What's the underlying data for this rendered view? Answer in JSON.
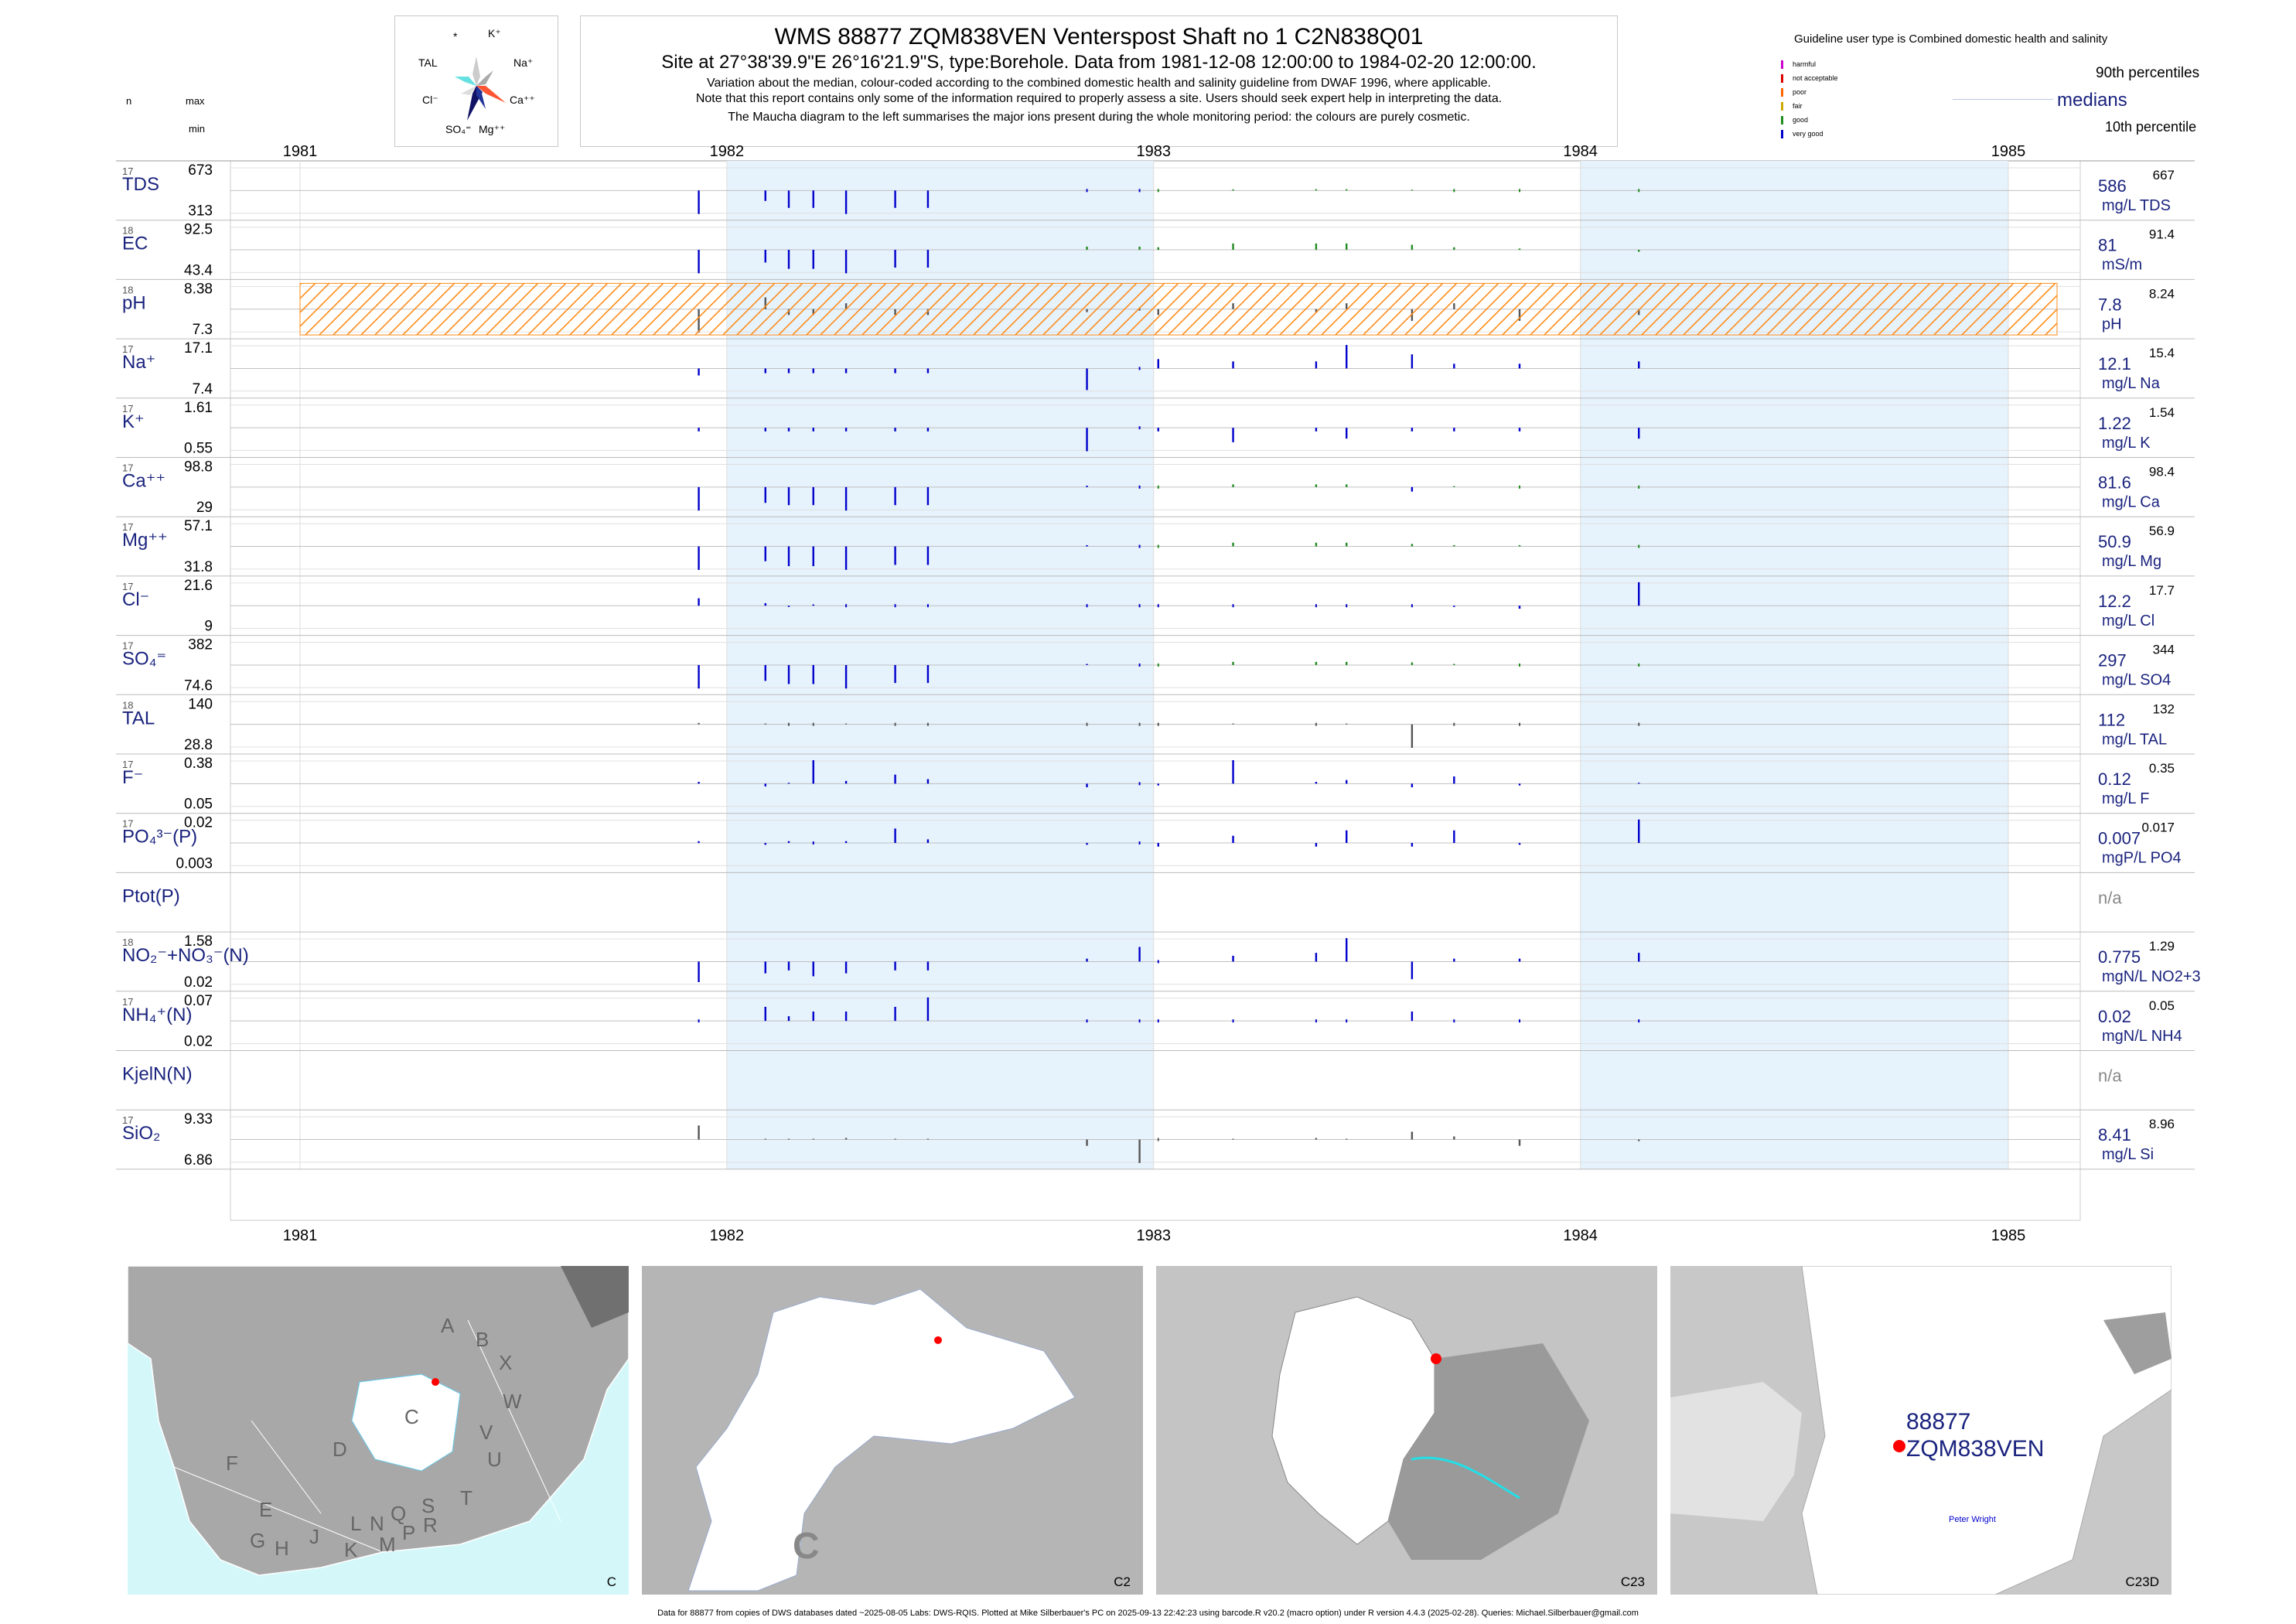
{
  "title": {
    "main": "WMS 88877 ZQM838VEN Venterspost Shaft no 1 C2N838Q01",
    "site": "Site at 27°38'39.9\"E 26°16'21.9\"S, type:Borehole.  Data from 1981-12-08 12:00:00 to 1984-02-20 12:00:00.",
    "line1": "Variation about the median,  colour-coded according to the combined domestic health and salinity guideline from DWAF 1996, where applicable.",
    "line2": "Note that this report contains only some of the information required to properly assess a site. Users should seek expert help in interpreting the data.",
    "line3": "The Maucha diagram to the left summarises the major ions present during the whole monitoring period: the colours are purely cosmetic."
  },
  "maucha": {
    "labels": [
      "*",
      "K⁺",
      "TAL",
      "Na⁺",
      "Cl⁻",
      "Ca⁺⁺",
      "SO₄⁼",
      "Mg⁺⁺"
    ],
    "colors": [
      "#66e0e0",
      "#cccccc",
      "#999999",
      "#ff5533",
      "#223399",
      "#111166",
      "#aaaaaa",
      "#dddddd"
    ]
  },
  "legend": {
    "title": "Guideline user type is Combined domestic health and salinity",
    "items": [
      {
        "label": "harmful",
        "color": "#cc00cc"
      },
      {
        "label": "not acceptable",
        "color": "#dd0000"
      },
      {
        "label": "poor",
        "color": "#ff6600"
      },
      {
        "label": "fair",
        "color": "#ccaa00"
      },
      {
        "label": "good",
        "color": "#228b22"
      },
      {
        "label": "very good",
        "color": "#0000cc"
      }
    ],
    "p90": "90th percentiles",
    "medians": "medians",
    "p10": "10th percentile"
  },
  "header": {
    "n": "n",
    "max": "max",
    "min": "min"
  },
  "chart_data": {
    "type": "bar",
    "x_start": "1981-01-01",
    "x_end": "1985-01-01",
    "years": [
      "1981",
      "1982",
      "1983",
      "1984",
      "1985"
    ],
    "sample_dates": [
      "1981-12-08",
      "1982-02-03",
      "1982-02-23",
      "1982-03-16",
      "1982-04-13",
      "1982-05-25",
      "1982-06-22",
      "1982-11-05",
      "1982-12-20",
      "1983-01-05",
      "1983-03-10",
      "1983-05-20",
      "1983-06-15",
      "1983-08-10",
      "1983-09-15",
      "1983-11-10",
      "1984-02-20"
    ],
    "colors": {
      "very_good": "#0000cc",
      "good": "#228b22",
      "fair": "#ccaa00",
      "poor": "#ff6600",
      "na": "#555555",
      "axis": "#aaaaaa",
      "shade": "#e6f2fc"
    },
    "series": [
      {
        "id": "TDS",
        "n": "17",
        "max": "673",
        "min": "313",
        "median": "586",
        "units": "mg/L TDS",
        "p90": "667",
        "values": [
          -270,
          -120,
          -200,
          -200,
          -270,
          -200,
          -200,
          3,
          0,
          0,
          13,
          15,
          15,
          10,
          5,
          3,
          0
        ],
        "colors": [
          "b",
          "b",
          "b",
          "b",
          "b",
          "b",
          "b",
          "b",
          "b",
          "g",
          "g",
          "g",
          "g",
          "g",
          "g",
          "g",
          "g"
        ]
      },
      {
        "id": "EC",
        "n": "18",
        "max": "92.5",
        "min": "43.4",
        "median": "81",
        "units": "mS/m",
        "p90": "91.4",
        "values": [
          -37,
          -20,
          -30,
          -30,
          -37,
          -28,
          -28,
          5,
          5,
          4,
          10,
          10,
          10,
          8,
          4,
          2,
          -3
        ],
        "colors": [
          "b",
          "b",
          "b",
          "b",
          "b",
          "b",
          "b",
          "g",
          "g",
          "g",
          "g",
          "g",
          "g",
          "g",
          "g",
          "g",
          "g"
        ]
      },
      {
        "id": "pH",
        "n": "18",
        "max": "8.38",
        "min": "7.3",
        "median": "7.8",
        "units": "pH",
        "p90": "8.24",
        "values": [
          -0.4,
          0.2,
          -0.1,
          -0.1,
          0.1,
          -0.1,
          -0.1,
          -0.05,
          0.0,
          -0.1,
          0.1,
          -0.05,
          0.1,
          -0.2,
          0.1,
          -0.2,
          -0.1
        ],
        "colors": [
          "n",
          "n",
          "n",
          "n",
          "n",
          "n",
          "n",
          "n",
          "n",
          "n",
          "n",
          "n",
          "n",
          "n",
          "n",
          "n",
          "n"
        ]
      },
      {
        "id": "Na",
        "n": "17",
        "max": "17.1",
        "min": "7.4",
        "median": "12.1",
        "units": "mg/L Na",
        "p90": "15.4",
        "values": [
          -1.5,
          -1.0,
          -1.0,
          -1.0,
          -1.0,
          -1.0,
          -1.0,
          -4.6,
          0,
          2.0,
          1.5,
          1.5,
          5.0,
          3.0,
          1.0,
          1.0,
          1.5
        ],
        "colors": [
          "b",
          "b",
          "b",
          "b",
          "b",
          "b",
          "b",
          "b",
          "b",
          "b",
          "b",
          "b",
          "b",
          "b",
          "b",
          "b",
          "b"
        ]
      },
      {
        "id": "K",
        "n": "17",
        "max": "1.61",
        "min": "0.55",
        "median": "1.22",
        "units": "mg/L K",
        "p90": "1.54",
        "values": [
          -0.1,
          -0.1,
          -0.1,
          -0.1,
          -0.1,
          -0.1,
          -0.1,
          -0.65,
          0,
          -0.1,
          -0.4,
          -0.1,
          -0.3,
          -0.1,
          -0.1,
          -0.1,
          -0.3
        ],
        "colors": [
          "b",
          "b",
          "b",
          "b",
          "b",
          "b",
          "b",
          "b",
          "b",
          "b",
          "b",
          "b",
          "b",
          "b",
          "b",
          "b",
          "b"
        ]
      },
      {
        "id": "Ca",
        "n": "17",
        "max": "98.8",
        "min": "29",
        "median": "81.6",
        "units": "mg/L Ca",
        "p90": "98.4",
        "values": [
          -52,
          -35,
          -40,
          -40,
          -52,
          -40,
          -40,
          3,
          0,
          0,
          6,
          6,
          6,
          -10,
          2,
          1,
          0
        ],
        "colors": [
          "b",
          "b",
          "b",
          "b",
          "b",
          "b",
          "b",
          "b",
          "b",
          "g",
          "g",
          "g",
          "g",
          "b",
          "g",
          "g",
          "g"
        ]
      },
      {
        "id": "Mg",
        "n": "17",
        "max": "57.1",
        "min": "31.8",
        "median": "50.9",
        "units": "mg/L Mg",
        "p90": "56.9",
        "values": [
          -19,
          -12,
          -16,
          -16,
          -19,
          -15,
          -15,
          1,
          0,
          0,
          3,
          3,
          3,
          2,
          1,
          1,
          0
        ],
        "colors": [
          "b",
          "b",
          "b",
          "b",
          "b",
          "b",
          "b",
          "b",
          "b",
          "g",
          "g",
          "g",
          "g",
          "g",
          "g",
          "g",
          "g"
        ]
      },
      {
        "id": "Cl",
        "n": "17",
        "max": "21.6",
        "min": "9",
        "median": "12.2",
        "units": "mg/L Cl",
        "p90": "17.7",
        "values": [
          3,
          1,
          -0.5,
          0.5,
          0,
          0.3,
          0.2,
          -0.2,
          0,
          -0.3,
          -0.3,
          -0.2,
          -0.3,
          0.2,
          -0.5,
          -1.2,
          9.4
        ],
        "colors": [
          "b",
          "b",
          "b",
          "b",
          "b",
          "b",
          "b",
          "b",
          "b",
          "b",
          "b",
          "b",
          "b",
          "b",
          "b",
          "b",
          "b"
        ]
      },
      {
        "id": "SO4",
        "n": "17",
        "max": "382",
        "min": "74.6",
        "median": "297",
        "units": "mg/L SO4",
        "p90": "344",
        "values": [
          -222,
          -150,
          -180,
          -180,
          -222,
          -170,
          -170,
          10,
          0,
          0,
          30,
          30,
          30,
          25,
          10,
          5,
          0
        ],
        "colors": [
          "b",
          "b",
          "b",
          "b",
          "b",
          "b",
          "b",
          "b",
          "b",
          "g",
          "g",
          "g",
          "g",
          "g",
          "g",
          "g",
          "g"
        ]
      },
      {
        "id": "TAL",
        "n": "18",
        "max": "140",
        "min": "28.8",
        "median": "112",
        "units": "mg/L TAL",
        "p90": "132",
        "values": [
          5,
          3,
          2,
          2,
          3,
          2,
          2,
          2,
          0,
          2,
          3,
          2,
          3,
          -83,
          2,
          2,
          1
        ],
        "colors": [
          "n",
          "n",
          "n",
          "n",
          "n",
          "n",
          "n",
          "n",
          "n",
          "n",
          "n",
          "n",
          "n",
          "n",
          "n",
          "n",
          "n"
        ]
      },
      {
        "id": "F",
        "n": "17",
        "max": "0.38",
        "min": "0.05",
        "median": "0.12",
        "units": "mg/L F",
        "p90": "0.35",
        "values": [
          0.02,
          -0.03,
          0.01,
          0.26,
          0.03,
          0.1,
          0.05,
          -0.04,
          0,
          -0.02,
          0.26,
          0.02,
          0.04,
          -0.04,
          0.08,
          -0.02,
          0.01
        ],
        "colors": [
          "b",
          "b",
          "b",
          "b",
          "b",
          "b",
          "b",
          "b",
          "b",
          "b",
          "b",
          "b",
          "b",
          "b",
          "b",
          "b",
          "b"
        ]
      },
      {
        "id": "PO4",
        "n": "17",
        "max": "0.02",
        "min": "0.003",
        "median": "0.007",
        "units": "mgP/L PO4",
        "p90": "0.017",
        "values": [
          0.001,
          -0.001,
          0.001,
          0,
          0.001,
          0.008,
          0.002,
          -0.001,
          0,
          -0.002,
          0.004,
          -0.002,
          0.007,
          -0.002,
          0.007,
          -0.001,
          0.013
        ],
        "colors": [
          "b",
          "b",
          "b",
          "b",
          "b",
          "b",
          "b",
          "b",
          "b",
          "b",
          "b",
          "b",
          "b",
          "b",
          "b",
          "b",
          "b"
        ]
      },
      {
        "id": "Ptot",
        "n": "",
        "max": "",
        "min": "",
        "median": "n/a",
        "units": "",
        "p90": "",
        "values": [],
        "colors": []
      },
      {
        "id": "NO3",
        "n": "18",
        "max": "1.58",
        "min": "0.02",
        "median": "0.775",
        "units": "mgN/L NO2+3",
        "p90": "1.29",
        "values": [
          -0.7,
          -0.4,
          -0.3,
          -0.5,
          -0.4,
          -0.3,
          -0.3,
          0.1,
          0.5,
          0,
          0.2,
          0.3,
          0.8,
          -0.6,
          0.1,
          0.1,
          0.3
        ],
        "colors": [
          "b",
          "b",
          "b",
          "b",
          "b",
          "b",
          "b",
          "b",
          "b",
          "b",
          "b",
          "b",
          "b",
          "b",
          "b",
          "b",
          "b"
        ]
      },
      {
        "id": "NH4",
        "n": "17",
        "max": "0.07",
        "min": "0.02",
        "median": "0.02",
        "units": "mgN/L NH4",
        "p90": "0.05",
        "values": [
          0,
          0.03,
          0.01,
          0.02,
          0.02,
          0.03,
          0.05,
          0,
          0,
          0,
          0,
          0,
          0,
          0.02,
          0,
          0,
          0
        ],
        "colors": [
          "b",
          "b",
          "b",
          "b",
          "b",
          "b",
          "b",
          "b",
          "b",
          "b",
          "b",
          "b",
          "b",
          "b",
          "b",
          "b",
          "b"
        ]
      },
      {
        "id": "KjelN",
        "n": "",
        "max": "",
        "min": "",
        "median": "n/a",
        "units": "",
        "p90": "",
        "values": [],
        "colors": []
      },
      {
        "id": "SiO2",
        "n": "17",
        "max": "9.33",
        "min": "6.86",
        "median": "8.41",
        "units": "mg/L Si",
        "p90": "8.96",
        "values": [
          0.9,
          0.05,
          0.05,
          0.05,
          0.1,
          0.05,
          0.05,
          -0.4,
          -1.5,
          0,
          0.05,
          0.1,
          0.05,
          0.5,
          0.2,
          -0.4,
          -0.1
        ],
        "colors": [
          "n",
          "n",
          "n",
          "n",
          "n",
          "n",
          "n",
          "n",
          "n",
          "n",
          "n",
          "n",
          "n",
          "n",
          "n",
          "n",
          "n"
        ]
      }
    ],
    "ph_band": {
      "from": "1981-12-08",
      "to": "1984-12-31",
      "color": "#ff8c1a"
    }
  },
  "maps": [
    {
      "label": "C",
      "regions": [
        "A",
        "B",
        "X",
        "W",
        "C",
        "V",
        "U",
        "T",
        "D",
        "F",
        "E",
        "G",
        "H",
        "J",
        "K",
        "L",
        "M",
        "N",
        "P",
        "Q",
        "R",
        "S"
      ]
    },
    {
      "label": "C2",
      "big": "C"
    },
    {
      "label": "C23"
    },
    {
      "label": "C23D",
      "site_id": "88877",
      "site_name": "ZQM838VEN",
      "place": "Peter Wright"
    }
  ],
  "footer": "Data for 88877 from copies of DWS databases dated ~2025-08-05 Labs: DWS-RQIS. Plotted at Mike Silberbauer's PC on 2025-09-13 22:42:23 using barcode.R v20.2 (macro option) under R version 4.4.3 (2025-02-28). Queries: Michael.Silberbauer@gmail.com"
}
